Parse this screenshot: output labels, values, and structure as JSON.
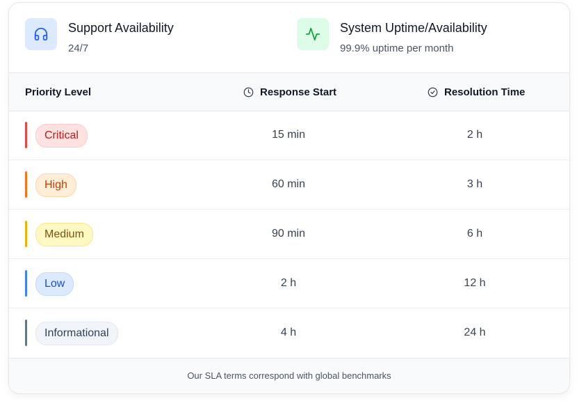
{
  "support": {
    "title": "Support Availability",
    "value": "24/7",
    "icon": "headphones-icon"
  },
  "uptime": {
    "title": "System Uptime/Availability",
    "value": "99.9% uptime per month",
    "icon": "activity-icon"
  },
  "table": {
    "headers": {
      "priority": "Priority Level",
      "response": "Response Start",
      "resolution": "Resolution Time"
    },
    "rows": [
      {
        "level": "Critical",
        "response": "15 min",
        "resolution": "2 h",
        "bar": "#ef4444",
        "pill_bg": "#fee2e2",
        "pill_border": "#fecaca",
        "pill_text": "#b91c1c"
      },
      {
        "level": "High",
        "response": "60 min",
        "resolution": "3 h",
        "bar": "#f97316",
        "pill_bg": "#ffedd5",
        "pill_border": "#fed7aa",
        "pill_text": "#c2410c"
      },
      {
        "level": "Medium",
        "response": "90 min",
        "resolution": "6 h",
        "bar": "#eab308",
        "pill_bg": "#fef9c3",
        "pill_border": "#fde68a",
        "pill_text": "#854d0e"
      },
      {
        "level": "Low",
        "response": "2 h",
        "resolution": "12 h",
        "bar": "#3b82f6",
        "pill_bg": "#dbeafe",
        "pill_border": "#bfdbfe",
        "pill_text": "#1d4ed8"
      },
      {
        "level": "Informational",
        "response": "4 h",
        "resolution": "24 h",
        "bar": "#64748b",
        "pill_bg": "#f1f5f9",
        "pill_border": "#e2e8f0",
        "pill_text": "#334155"
      }
    ]
  },
  "footer": {
    "note": "Our SLA terms correspond with global benchmarks"
  }
}
